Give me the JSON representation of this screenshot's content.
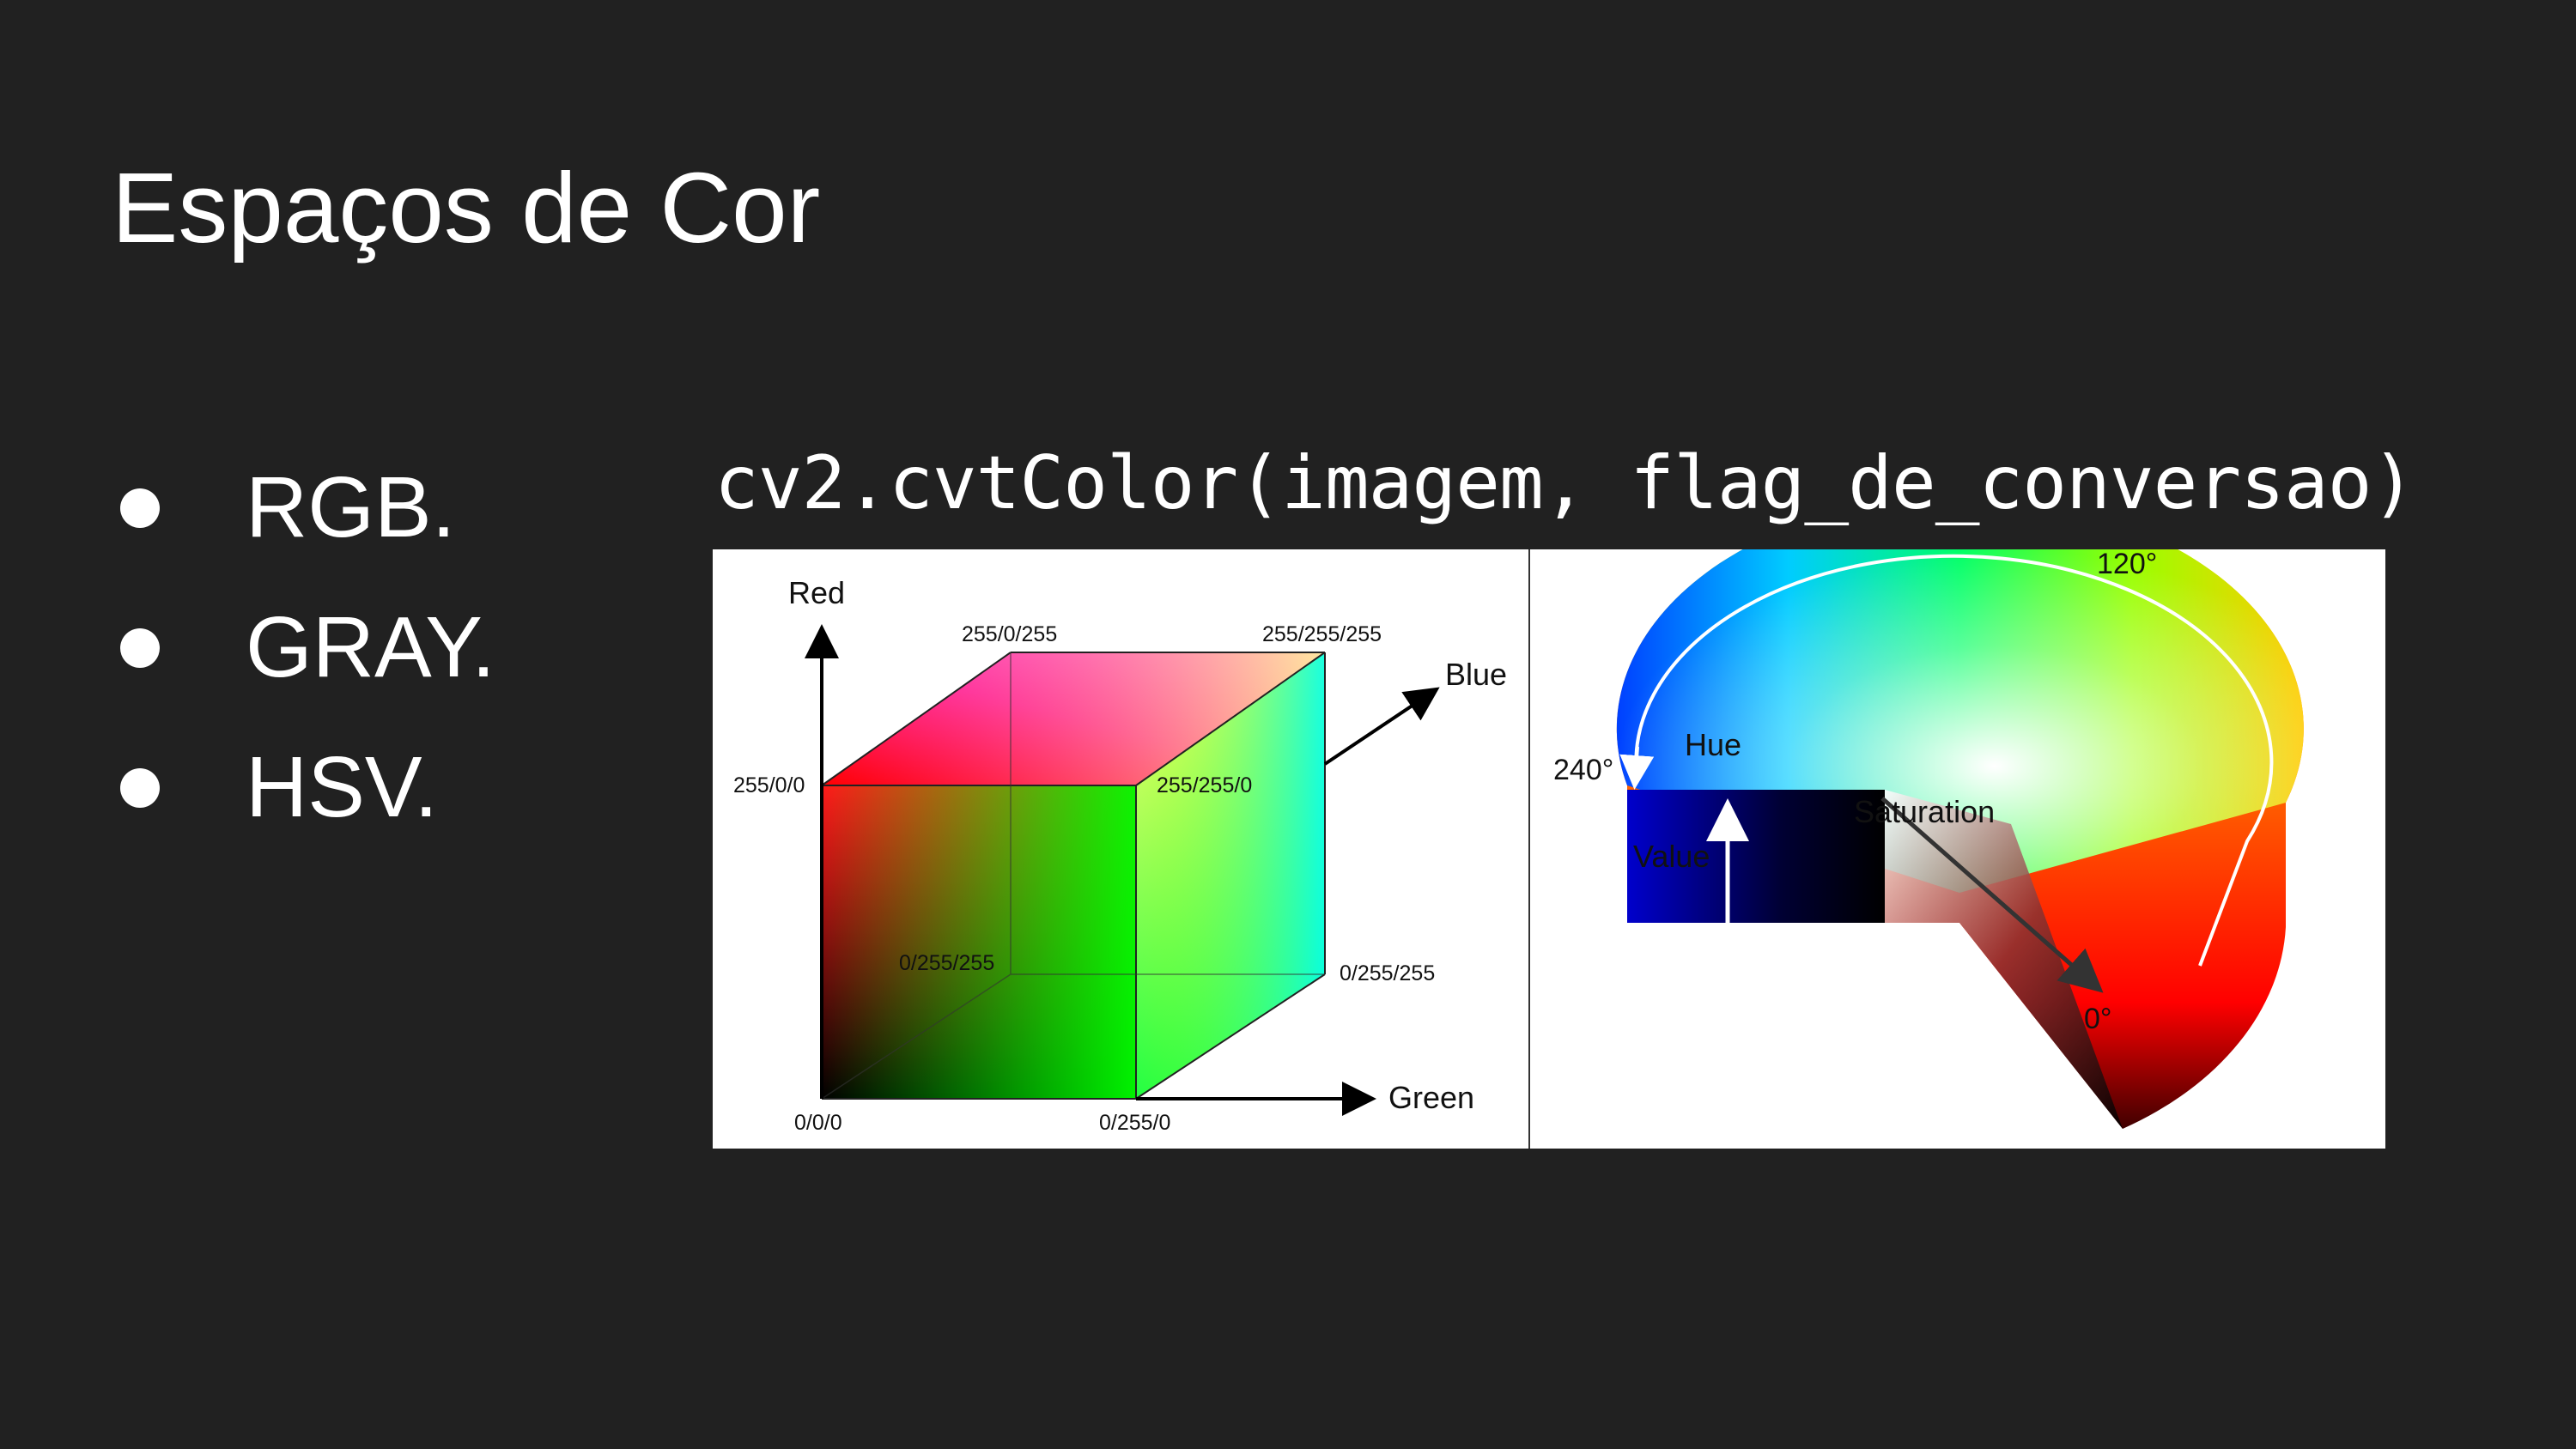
{
  "slide": {
    "title": "Espaços de Cor",
    "bullets": [
      "RGB.",
      "GRAY.",
      "HSV."
    ],
    "code": "cv2.cvtColor(imagem, flag_de_conversao)",
    "background_color": "#212121"
  },
  "rgb_cube": {
    "axis_red": "Red",
    "axis_green": "Green",
    "axis_blue": "Blue",
    "labels": {
      "top_back_left": "255/0/255",
      "top_back_right": "255/255/255",
      "front_top_left": "255/0/0",
      "front_top_right": "255/255/0",
      "back_bottom_left": "0/255/255",
      "back_bottom_right": "0/255/255",
      "origin": "0/0/0",
      "front_bottom_right": "0/255/0"
    }
  },
  "hsv_cone": {
    "hue_label": "Hue",
    "value_label": "Value",
    "saturation_label": "Saturation",
    "angle_120": "120°",
    "angle_240": "240°",
    "angle_0": "0°"
  }
}
